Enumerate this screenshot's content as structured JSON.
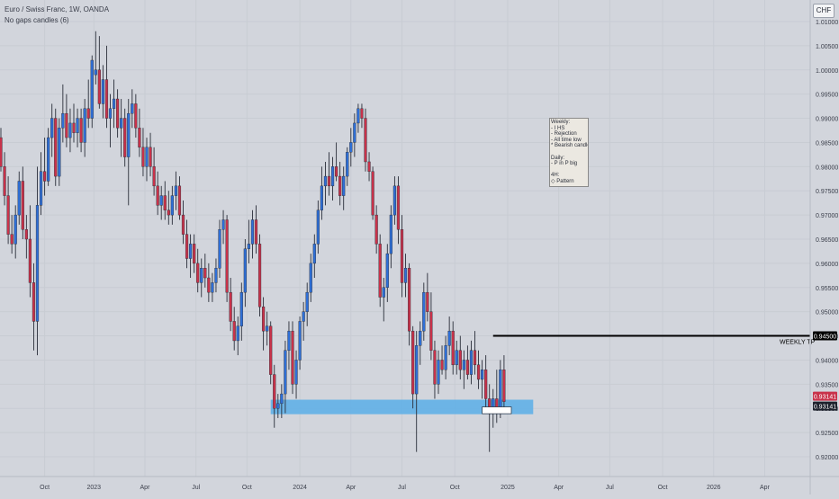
{
  "header": {
    "symbol_line": "Euro / Swiss Franc, 1W, OANDA",
    "indicator_line": "No gaps candles (6)"
  },
  "currency_badge": "CHF",
  "note": {
    "lines": [
      "Weekly:",
      "- I HS",
      "- Rejection",
      "- All time low",
      "* Bearish candle",
      "",
      "Daily:",
      "- P in P big",
      "",
      "4H:",
      "◇ Pattern"
    ]
  },
  "colors": {
    "background": "#d2d5dc",
    "bull_candle": "#2f6fd6",
    "bear_candle": "#c8324a",
    "wick": "#2a2e39",
    "zone": "#5aaee8",
    "tp_line": "#000000",
    "grid": "#c8ccd3"
  },
  "chart_data": {
    "type": "candlestick",
    "title": "Euro / Swiss Franc, 1W, OANDA",
    "xlabel": "",
    "ylabel": "",
    "ylim": [
      0.917,
      1.014
    ],
    "y_ticks": [
      "1.01000",
      "1.00500",
      "1.00000",
      "0.99500",
      "0.99000",
      "0.98500",
      "0.98000",
      "0.97500",
      "0.97000",
      "0.96500",
      "0.96000",
      "0.95500",
      "0.95000",
      "0.94500",
      "0.94000",
      "0.93500",
      "0.93000",
      "0.92500",
      "0.92000"
    ],
    "x_ticks": [
      "Oct",
      "2023",
      "Apr",
      "Jul",
      "Oct",
      "2024",
      "Apr",
      "Jul",
      "Oct",
      "2025",
      "Apr",
      "Jul",
      "Oct",
      "2026",
      "Apr"
    ],
    "grid": true,
    "horizontal_line": {
      "label": "WEEKLY TP",
      "price": 0.945,
      "price_label": "0.94500",
      "start_index": 135
    },
    "demand_zone": {
      "low": 0.9288,
      "high": 0.9318,
      "start_index": 74,
      "end_index": 146
    },
    "last_price_labels": [
      "0.93141",
      "0.93141"
    ],
    "highlight_box": {
      "low": 0.9289,
      "high": 0.9303,
      "start_index": 132,
      "end_index": 140
    },
    "ohlc": [
      [
        0.986,
        0.988,
        0.979,
        0.98
      ],
      [
        0.98,
        0.983,
        0.972,
        0.974
      ],
      [
        0.974,
        0.978,
        0.964,
        0.966
      ],
      [
        0.966,
        0.97,
        0.962,
        0.964
      ],
      [
        0.964,
        0.972,
        0.961,
        0.97
      ],
      [
        0.97,
        0.979,
        0.968,
        0.977
      ],
      [
        0.977,
        0.98,
        0.965,
        0.967
      ],
      [
        0.967,
        0.97,
        0.961,
        0.965
      ],
      [
        0.965,
        0.972,
        0.953,
        0.956
      ],
      [
        0.956,
        0.96,
        0.942,
        0.948
      ],
      [
        0.948,
        0.98,
        0.941,
        0.972
      ],
      [
        0.972,
        0.983,
        0.97,
        0.979
      ],
      [
        0.979,
        0.986,
        0.974,
        0.977
      ],
      [
        0.977,
        0.988,
        0.976,
        0.986
      ],
      [
        0.986,
        0.993,
        0.982,
        0.99
      ],
      [
        0.99,
        0.992,
        0.976,
        0.978
      ],
      [
        0.978,
        0.99,
        0.976,
        0.988
      ],
      [
        0.988,
        0.997,
        0.985,
        0.991
      ],
      [
        0.991,
        0.995,
        0.984,
        0.986
      ],
      [
        0.986,
        0.992,
        0.983,
        0.989
      ],
      [
        0.989,
        0.993,
        0.985,
        0.987
      ],
      [
        0.987,
        0.992,
        0.984,
        0.99
      ],
      [
        0.99,
        0.992,
        0.983,
        0.985
      ],
      [
        0.985,
        0.994,
        0.982,
        0.992
      ],
      [
        0.992,
        0.998,
        0.988,
        0.99
      ],
      [
        0.99,
        1.003,
        0.988,
        1.002
      ],
      [
        0.999,
        1.008,
        0.997,
        1.0
      ],
      [
        1.0,
        1.007,
        0.992,
        0.993
      ],
      [
        0.993,
        1.001,
        0.99,
        0.998
      ],
      [
        0.998,
        1.005,
        0.988,
        0.99
      ],
      [
        0.99,
        0.995,
        0.984,
        0.992
      ],
      [
        0.992,
        0.998,
        0.988,
        0.994
      ],
      [
        0.994,
        0.996,
        0.986,
        0.988
      ],
      [
        0.988,
        0.994,
        0.982,
        0.99
      ],
      [
        0.99,
        0.992,
        0.98,
        0.982
      ],
      [
        0.982,
        0.994,
        0.972,
        0.991
      ],
      [
        0.991,
        0.996,
        0.988,
        0.993
      ],
      [
        0.993,
        0.995,
        0.986,
        0.988
      ],
      [
        0.988,
        0.992,
        0.982,
        0.984
      ],
      [
        0.984,
        0.988,
        0.978,
        0.98
      ],
      [
        0.98,
        0.986,
        0.977,
        0.984
      ],
      [
        0.984,
        0.987,
        0.978,
        0.98
      ],
      [
        0.98,
        0.984,
        0.974,
        0.976
      ],
      [
        0.976,
        0.979,
        0.97,
        0.972
      ],
      [
        0.972,
        0.976,
        0.969,
        0.974
      ],
      [
        0.974,
        0.977,
        0.969,
        0.971
      ],
      [
        0.971,
        0.975,
        0.968,
        0.97
      ],
      [
        0.97,
        0.976,
        0.968,
        0.974
      ],
      [
        0.974,
        0.979,
        0.971,
        0.976
      ],
      [
        0.976,
        0.978,
        0.969,
        0.97
      ],
      [
        0.97,
        0.973,
        0.964,
        0.966
      ],
      [
        0.966,
        0.969,
        0.959,
        0.961
      ],
      [
        0.961,
        0.966,
        0.957,
        0.964
      ],
      [
        0.964,
        0.966,
        0.958,
        0.96
      ],
      [
        0.96,
        0.963,
        0.954,
        0.956
      ],
      [
        0.956,
        0.961,
        0.953,
        0.959
      ],
      [
        0.959,
        0.962,
        0.955,
        0.957
      ],
      [
        0.957,
        0.96,
        0.952,
        0.954
      ],
      [
        0.954,
        0.958,
        0.952,
        0.956
      ],
      [
        0.956,
        0.961,
        0.954,
        0.959
      ],
      [
        0.959,
        0.969,
        0.957,
        0.967
      ],
      [
        0.967,
        0.971,
        0.964,
        0.969
      ],
      [
        0.969,
        0.97,
        0.952,
        0.954
      ],
      [
        0.954,
        0.957,
        0.946,
        0.948
      ],
      [
        0.948,
        0.951,
        0.942,
        0.944
      ],
      [
        0.944,
        0.949,
        0.941,
        0.947
      ],
      [
        0.947,
        0.956,
        0.944,
        0.954
      ],
      [
        0.954,
        0.965,
        0.951,
        0.963
      ],
      [
        0.963,
        0.969,
        0.96,
        0.964
      ],
      [
        0.964,
        0.971,
        0.961,
        0.969
      ],
      [
        0.969,
        0.972,
        0.962,
        0.964
      ],
      [
        0.964,
        0.966,
        0.949,
        0.951
      ],
      [
        0.951,
        0.953,
        0.942,
        0.946
      ],
      [
        0.946,
        0.95,
        0.943,
        0.947
      ],
      [
        0.947,
        0.948,
        0.935,
        0.937
      ],
      [
        0.937,
        0.939,
        0.926,
        0.93
      ],
      [
        0.93,
        0.933,
        0.928,
        0.931
      ],
      [
        0.931,
        0.935,
        0.928,
        0.933
      ],
      [
        0.933,
        0.944,
        0.929,
        0.942
      ],
      [
        0.942,
        0.948,
        0.938,
        0.946
      ],
      [
        0.946,
        0.948,
        0.933,
        0.935
      ],
      [
        0.935,
        0.942,
        0.932,
        0.94
      ],
      [
        0.94,
        0.949,
        0.938,
        0.948
      ],
      [
        0.948,
        0.952,
        0.944,
        0.95
      ],
      [
        0.95,
        0.956,
        0.947,
        0.954
      ],
      [
        0.954,
        0.962,
        0.952,
        0.96
      ],
      [
        0.96,
        0.966,
        0.957,
        0.964
      ],
      [
        0.964,
        0.973,
        0.962,
        0.971
      ],
      [
        0.971,
        0.98,
        0.969,
        0.976
      ],
      [
        0.976,
        0.981,
        0.972,
        0.978
      ],
      [
        0.978,
        0.983,
        0.974,
        0.976
      ],
      [
        0.976,
        0.982,
        0.973,
        0.98
      ],
      [
        0.98,
        0.985,
        0.977,
        0.978
      ],
      [
        0.978,
        0.981,
        0.972,
        0.974
      ],
      [
        0.974,
        0.98,
        0.971,
        0.978
      ],
      [
        0.978,
        0.984,
        0.976,
        0.983
      ],
      [
        0.983,
        0.988,
        0.98,
        0.985
      ],
      [
        0.985,
        0.991,
        0.982,
        0.989
      ],
      [
        0.989,
        0.993,
        0.987,
        0.992
      ],
      [
        0.992,
        0.993,
        0.988,
        0.99
      ],
      [
        0.99,
        0.992,
        0.979,
        0.981
      ],
      [
        0.981,
        0.983,
        0.977,
        0.979
      ],
      [
        0.979,
        0.98,
        0.969,
        0.97
      ],
      [
        0.97,
        0.972,
        0.962,
        0.964
      ],
      [
        0.964,
        0.966,
        0.951,
        0.953
      ],
      [
        0.953,
        0.957,
        0.948,
        0.955
      ],
      [
        0.955,
        0.964,
        0.952,
        0.962
      ],
      [
        0.962,
        0.972,
        0.959,
        0.97
      ],
      [
        0.97,
        0.978,
        0.968,
        0.976
      ],
      [
        0.976,
        0.978,
        0.964,
        0.967
      ],
      [
        0.967,
        0.97,
        0.953,
        0.956
      ],
      [
        0.956,
        0.962,
        0.953,
        0.959
      ],
      [
        0.959,
        0.96,
        0.943,
        0.946
      ],
      [
        0.946,
        0.947,
        0.93,
        0.933
      ],
      [
        0.933,
        0.946,
        0.921,
        0.943
      ],
      [
        0.943,
        0.948,
        0.939,
        0.946
      ],
      [
        0.946,
        0.956,
        0.944,
        0.954
      ],
      [
        0.954,
        0.958,
        0.948,
        0.95
      ],
      [
        0.95,
        0.954,
        0.94,
        0.942
      ],
      [
        0.942,
        0.944,
        0.932,
        0.935
      ],
      [
        0.935,
        0.942,
        0.933,
        0.94
      ],
      [
        0.94,
        0.943,
        0.937,
        0.938
      ],
      [
        0.938,
        0.945,
        0.936,
        0.943
      ],
      [
        0.943,
        0.949,
        0.941,
        0.946
      ],
      [
        0.946,
        0.948,
        0.937,
        0.939
      ],
      [
        0.939,
        0.944,
        0.937,
        0.942
      ],
      [
        0.942,
        0.945,
        0.936,
        0.938
      ],
      [
        0.938,
        0.942,
        0.934,
        0.94
      ],
      [
        0.94,
        0.943,
        0.936,
        0.937
      ],
      [
        0.937,
        0.944,
        0.935,
        0.942
      ],
      [
        0.942,
        0.946,
        0.937,
        0.939
      ],
      [
        0.939,
        0.942,
        0.934,
        0.936
      ],
      [
        0.936,
        0.94,
        0.932,
        0.938
      ],
      [
        0.938,
        0.941,
        0.93,
        0.932
      ],
      [
        0.932,
        0.935,
        0.921,
        0.93
      ],
      [
        0.93,
        0.934,
        0.926,
        0.932
      ],
      [
        0.932,
        0.938,
        0.927,
        0.93
      ],
      [
        0.93,
        0.94,
        0.928,
        0.938
      ],
      [
        0.938,
        0.941,
        0.93,
        0.9314
      ]
    ]
  }
}
